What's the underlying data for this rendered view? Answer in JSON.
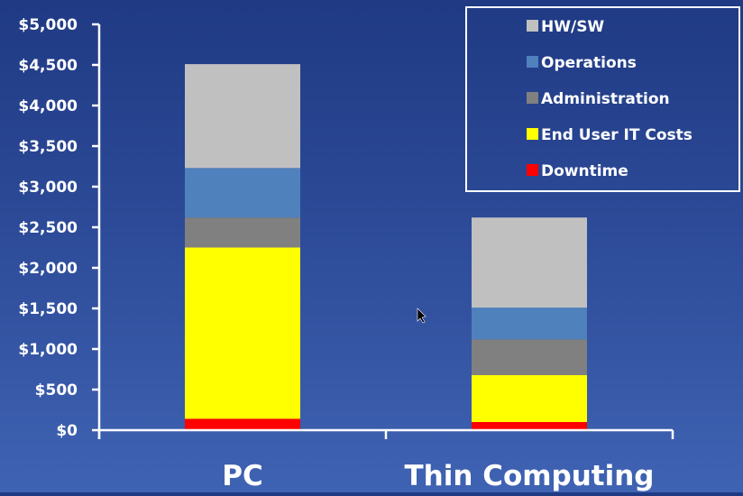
{
  "chart_data": {
    "type": "bar",
    "stacked": true,
    "categories": [
      "PC",
      "Thin Computing"
    ],
    "series": [
      {
        "name": "Downtime",
        "color": "#ff0000",
        "values": [
          140,
          100
        ]
      },
      {
        "name": "End User IT Costs",
        "color": "#ffff00",
        "values": [
          2110,
          580
        ]
      },
      {
        "name": "Administration",
        "color": "#808080",
        "values": [
          370,
          440
        ]
      },
      {
        "name": "Operations",
        "color": "#4f81bd",
        "values": [
          610,
          390
        ]
      },
      {
        "name": "HW/SW",
        "color": "#c0c0c0",
        "values": [
          1280,
          1110
        ]
      }
    ],
    "legend_order": [
      "HW/SW",
      "Operations",
      "Administration",
      "End User IT Costs",
      "Downtime"
    ],
    "ylim": [
      0,
      5000
    ],
    "yticks": [
      {
        "value": 0,
        "label": "$0"
      },
      {
        "value": 500,
        "label": "$500"
      },
      {
        "value": 1000,
        "label": "$1,000"
      },
      {
        "value": 1500,
        "label": "$1,500"
      },
      {
        "value": 2000,
        "label": "$2,000"
      },
      {
        "value": 2500,
        "label": "$2,500"
      },
      {
        "value": 3000,
        "label": "$3,000"
      },
      {
        "value": 3500,
        "label": "$3,500"
      },
      {
        "value": 4000,
        "label": "$4,000"
      },
      {
        "value": 4500,
        "label": "$4,500"
      },
      {
        "value": 5000,
        "label": "$5,000"
      }
    ],
    "title": "",
    "xlabel": "",
    "ylabel": "",
    "grid": false,
    "legend_position": "top-right"
  }
}
